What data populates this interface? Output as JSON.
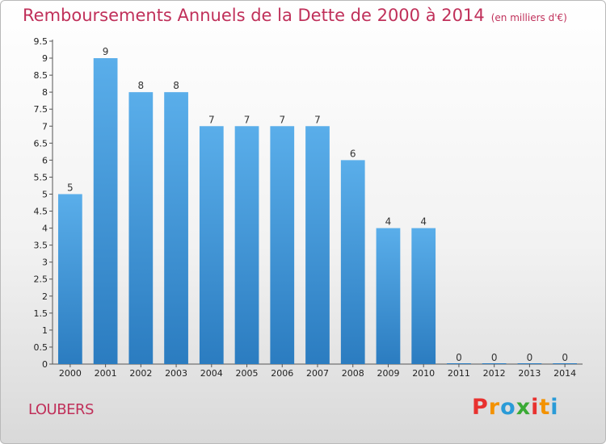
{
  "header": {
    "title": "Remboursements Annuels de la Dette de 2000 à 2014",
    "unit": "(en milliers d'€)"
  },
  "footer": {
    "commune": "LOUBERS",
    "logo_text": "Proxiti"
  },
  "colors": {
    "bar_top": "#5aaeea",
    "bar_bottom": "#2b7cc0",
    "title": "#c0305a",
    "logo": [
      "#e8312f",
      "#f39200",
      "#2a9bd7",
      "#3aaa35",
      "#e8312f",
      "#f39200",
      "#2a9bd7"
    ]
  },
  "chart_data": {
    "type": "bar",
    "title": "Remboursements Annuels de la Dette de 2000 à 2014",
    "categories": [
      "2000",
      "2001",
      "2002",
      "2003",
      "2004",
      "2005",
      "2006",
      "2007",
      "2008",
      "2009",
      "2010",
      "2011",
      "2012",
      "2013",
      "2014"
    ],
    "values": [
      5,
      9,
      8,
      8,
      7,
      7,
      7,
      7,
      6,
      4,
      4,
      0,
      0,
      0,
      0
    ],
    "value_labels": [
      "5",
      "9",
      "8",
      "8",
      "7",
      "7",
      "7",
      "7",
      "6",
      "4",
      "4",
      "0",
      "0",
      "0",
      "0"
    ],
    "y_ticks": [
      "0",
      "0.5",
      "1",
      "1.5",
      "2",
      "2.5",
      "3",
      "3.5",
      "4",
      "4.5",
      "5",
      "5.5",
      "6",
      "6.5",
      "7",
      "7.5",
      "8",
      "8.5",
      "9",
      "9.5"
    ],
    "ylim": [
      0,
      9.5
    ],
    "grid": false,
    "legend": "none"
  }
}
